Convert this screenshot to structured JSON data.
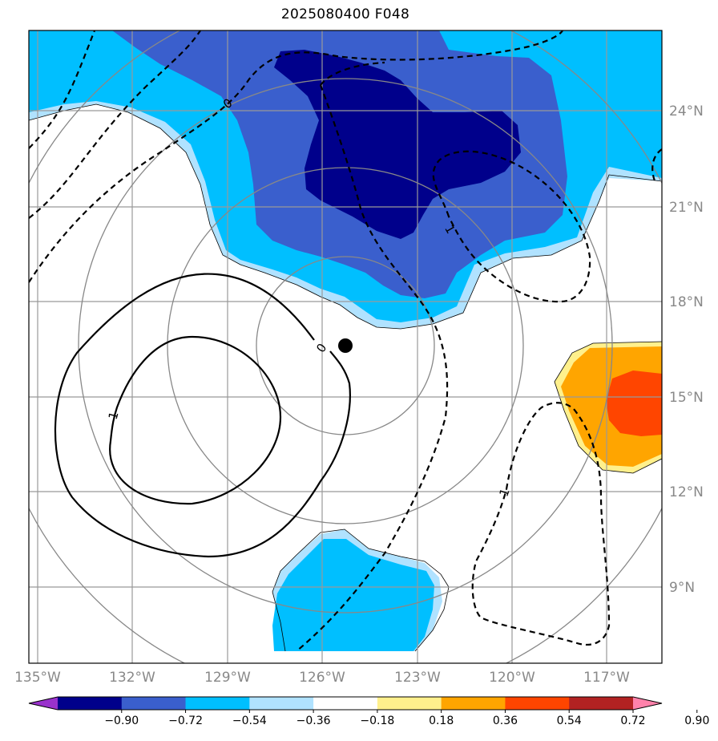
{
  "title": "2025080400 F048",
  "map": {
    "lon_labels": [
      "135°W",
      "132°W",
      "129°W",
      "126°W",
      "123°W",
      "120°W",
      "117°W"
    ],
    "lat_labels": [
      "24°N",
      "21°N",
      "18°N",
      "15°N",
      "12°N",
      "9°N"
    ],
    "contour_labels": [
      "0",
      "0",
      "1",
      "1",
      "1"
    ],
    "storm_center": {
      "lon": -125.3,
      "lat": 16.6
    }
  },
  "colorbar": {
    "ticks": [
      "−0.90",
      "−0.72",
      "−0.54",
      "−0.36",
      "−0.18",
      "0.18",
      "0.36",
      "0.54",
      "0.72",
      "0.90"
    ],
    "colors": [
      "#9932cc",
      "#00008b",
      "#3a5fcd",
      "#00bfff",
      "#b0e2ff",
      "#ffffff",
      "#fff08c",
      "#ffa500",
      "#ff4500",
      "#b22222",
      "#ff82ab"
    ]
  }
}
